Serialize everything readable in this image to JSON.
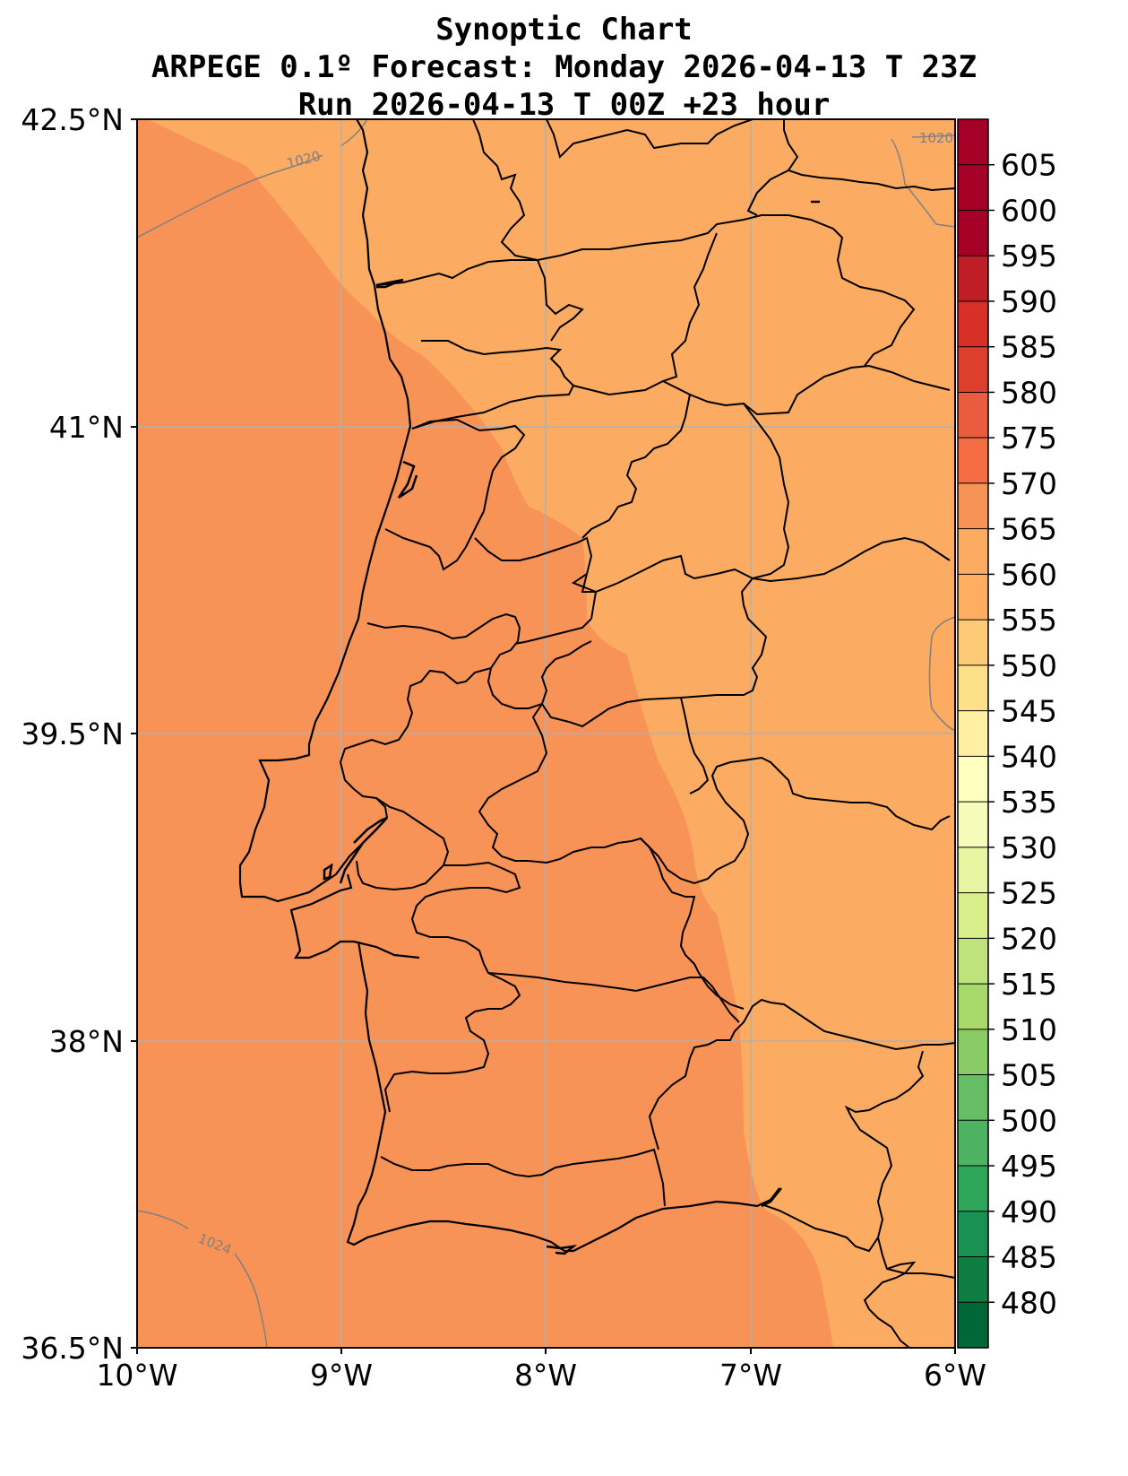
{
  "title": {
    "line1": "Synoptic Chart",
    "line2": "ARPEGE 0.1º Forecast: Monday 2026-04-13 T 23Z",
    "line3": "Run 2026-04-13 T 00Z +23 hour"
  },
  "map": {
    "lon_range": [
      -10,
      -6
    ],
    "lat_range": [
      36.5,
      42.5
    ],
    "lat_ticks": [
      {
        "value": 42.5,
        "label": "42.5°N"
      },
      {
        "value": 41.0,
        "label": "41°N"
      },
      {
        "value": 39.5,
        "label": "39.5°N"
      },
      {
        "value": 38.0,
        "label": "38°N"
      },
      {
        "value": 36.5,
        "label": "36.5°N"
      }
    ],
    "lon_ticks": [
      {
        "value": -10,
        "label": "10°W"
      },
      {
        "value": -9,
        "label": "9°W"
      },
      {
        "value": -8,
        "label": "8°W"
      },
      {
        "value": -7,
        "label": "7°W"
      },
      {
        "value": -6,
        "label": "6°W"
      }
    ],
    "fill_colors": {
      "band_570_575": "#f79356",
      "band_565_570": "#fbac62"
    },
    "gridline_color": "#b0b0b0",
    "isobars": [
      {
        "label": "1020",
        "location": "northwest offshore"
      },
      {
        "label": "1020",
        "location": "northeast corner"
      },
      {
        "label": "1024",
        "location": "southwest offshore"
      }
    ]
  },
  "colorbar": {
    "levels": [
      480,
      485,
      490,
      495,
      500,
      505,
      510,
      515,
      520,
      525,
      530,
      535,
      540,
      545,
      550,
      555,
      560,
      565,
      570,
      575,
      580,
      585,
      590,
      595,
      600,
      605
    ],
    "colors": [
      "#006837",
      "#0e7d3f",
      "#199150",
      "#2fa65a",
      "#4db262",
      "#66bd63",
      "#89cb67",
      "#a6d96a",
      "#bfe37c",
      "#d9ef8b",
      "#e7f5a3",
      "#f7fbba",
      "#ffffbf",
      "#fff0a6",
      "#fee08b",
      "#fdca75",
      "#fdae61",
      "#fbac62",
      "#f79356",
      "#f46d43",
      "#e95c3e",
      "#dd3f2e",
      "#d73027",
      "#c01e27",
      "#a50026"
    ]
  }
}
